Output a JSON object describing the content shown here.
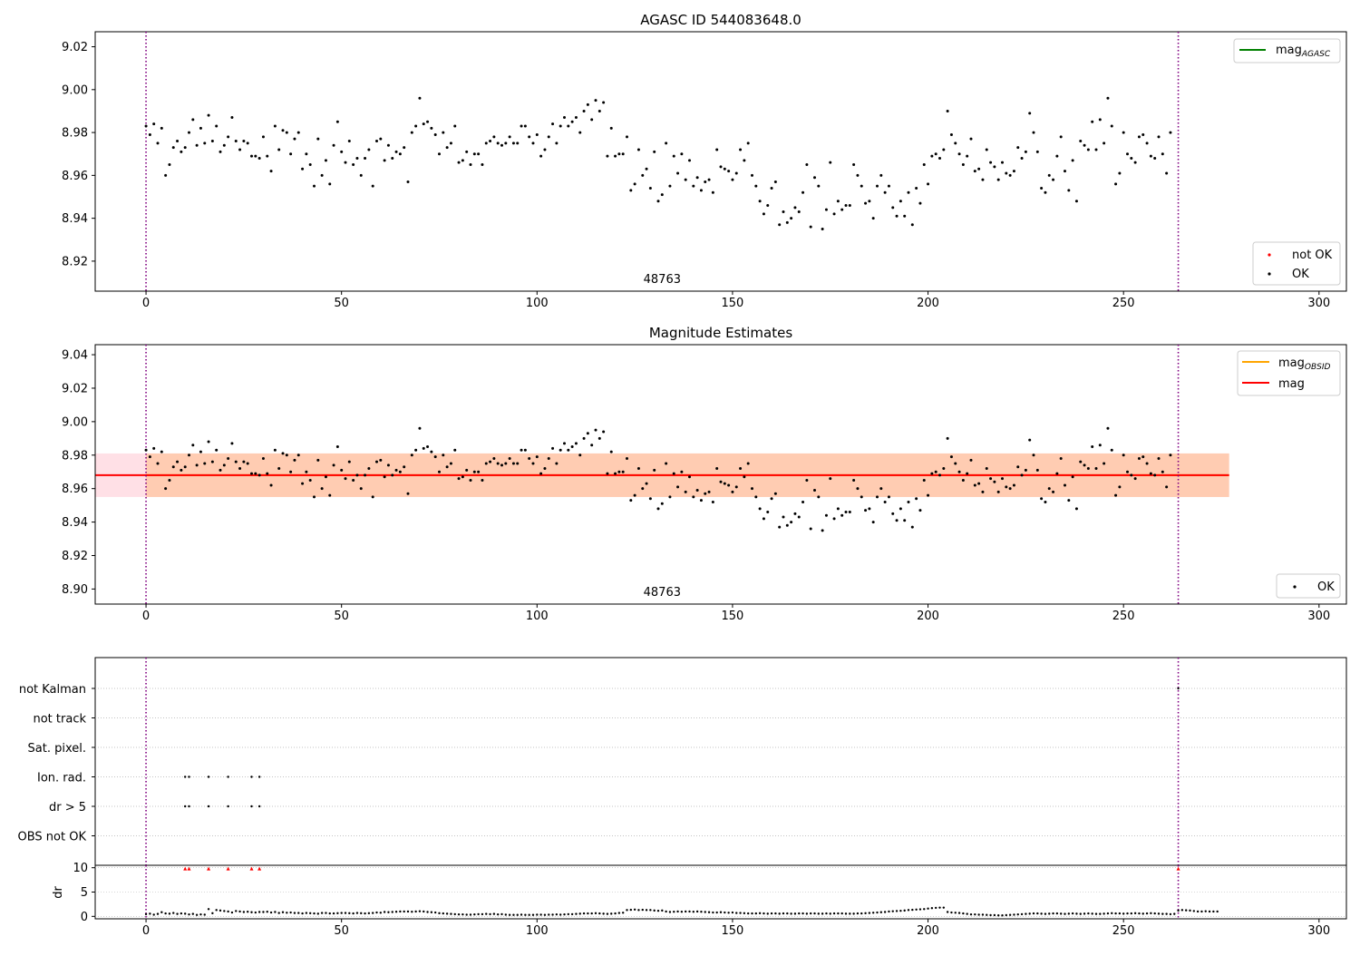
{
  "colors": {
    "ok": "#000000",
    "not_ok": "#ff0000",
    "mag_agasc": "#008000",
    "mag_obsid": "#ffa500",
    "mag": "#ff0000",
    "obsid_band": "#ffc8a8",
    "mag_band": "#ffe0e6",
    "vline": "#800080",
    "grid": "#b0b0b0"
  },
  "chart_data": [
    {
      "type": "scatter",
      "title": "AGASC ID 544083648.0",
      "xlim": [
        -13,
        307
      ],
      "ylim": [
        8.906,
        9.027
      ],
      "x_ticks": [
        0,
        50,
        100,
        150,
        200,
        250,
        300
      ],
      "x_tick_labels": [
        "0",
        "50",
        "100",
        "150",
        "200",
        "250",
        "300"
      ],
      "y_ticks": [
        8.92,
        8.94,
        8.96,
        8.98,
        9.0,
        9.02
      ],
      "y_tick_labels": [
        "8.92",
        "8.94",
        "8.96",
        "8.98",
        "9.00",
        "9.02"
      ],
      "obsid_boundaries": [
        0,
        264
      ],
      "obsid_label": "48763",
      "obsid_label_x": 132,
      "legend_upper": [
        {
          "name": "mag",
          "sub": "AGASC",
          "color": "#008000",
          "style": "line"
        }
      ],
      "legend_lower": [
        {
          "name": "not OK",
          "color": "#ff0000",
          "style": "point"
        },
        {
          "name": "OK",
          "color": "#000000",
          "style": "point"
        }
      ],
      "series": [
        {
          "name": "OK",
          "ref": "mags"
        }
      ]
    },
    {
      "type": "scatter",
      "title": "Magnitude Estimates",
      "xlim": [
        -13,
        307
      ],
      "ylim": [
        8.891,
        9.046
      ],
      "x_ticks": [
        0,
        50,
        100,
        150,
        200,
        250,
        300
      ],
      "x_tick_labels": [
        "0",
        "50",
        "100",
        "150",
        "200",
        "250",
        "300"
      ],
      "y_ticks": [
        8.9,
        8.92,
        8.94,
        8.96,
        8.98,
        9.0,
        9.02,
        9.04
      ],
      "y_tick_labels": [
        "8.90",
        "8.92",
        "8.94",
        "8.96",
        "8.98",
        "9.00",
        "9.02",
        "9.04"
      ],
      "obsid_boundaries": [
        0,
        264
      ],
      "obsid_label": "48763",
      "obsid_label_x": 132,
      "mag": 8.968,
      "mag_std": 0.013,
      "mag_line_x": [
        -13,
        277
      ],
      "legend_upper": [
        {
          "name": "mag",
          "sub": "OBSID",
          "color": "#ffa500",
          "style": "line"
        },
        {
          "name": "mag",
          "sub": "",
          "color": "#ff0000",
          "style": "line"
        }
      ],
      "legend_lower": [
        {
          "name": "OK",
          "color": "#000000",
          "style": "point"
        }
      ],
      "series": [
        {
          "name": "OK",
          "ref": "mags"
        }
      ]
    },
    {
      "type": "scatter",
      "title": "",
      "xlim": [
        -13,
        307
      ],
      "x_ticks": [
        0,
        50,
        100,
        150,
        200,
        250,
        300
      ],
      "x_tick_labels": [
        "0",
        "50",
        "100",
        "150",
        "200",
        "250",
        "300"
      ],
      "obsid_boundaries": [
        0,
        264
      ],
      "flag_rows": [
        "not Kalman",
        "not track",
        "Sat. pixel.",
        "Ion. rad.",
        "dr > 5",
        "OBS not OK"
      ],
      "flag_points": {
        "not Kalman": [
          264
        ],
        "not track": [],
        "Sat. pixel.": [],
        "Ion. rad.": [
          10,
          11,
          16,
          21,
          27,
          29
        ],
        "dr > 5": [
          10,
          11,
          16,
          21,
          27,
          29
        ],
        "OBS not OK": []
      },
      "dr_ylabel": "dr",
      "dr_ylim": [
        -0.5,
        10.5
      ],
      "dr_ticks": [
        0,
        5,
        10
      ],
      "dr_tick_labels": [
        "0",
        "5",
        "10"
      ],
      "dr_clipped_x": [
        10,
        11,
        16,
        21,
        27,
        29,
        264
      ]
    }
  ],
  "mags": [
    8.983,
    8.979,
    8.984,
    8.975,
    8.982,
    8.96,
    8.965,
    8.973,
    8.976,
    8.971,
    8.973,
    8.98,
    8.986,
    8.974,
    8.982,
    8.975,
    8.988,
    8.976,
    8.983,
    8.971,
    8.974,
    8.978,
    8.987,
    8.976,
    8.972,
    8.976,
    8.975,
    8.969,
    8.969,
    8.968,
    8.978,
    8.969,
    8.962,
    8.983,
    8.972,
    8.981,
    8.98,
    8.97,
    8.977,
    8.98,
    8.963,
    8.97,
    8.965,
    8.955,
    8.977,
    8.96,
    8.967,
    8.956,
    8.974,
    8.985,
    8.971,
    8.966,
    8.976,
    8.965,
    8.968,
    8.96,
    8.968,
    8.972,
    8.955,
    8.976,
    8.977,
    8.967,
    8.974,
    8.968,
    8.971,
    8.97,
    8.973,
    8.957,
    8.98,
    8.983,
    8.996,
    8.984,
    8.985,
    8.982,
    8.979,
    8.97,
    8.98,
    8.973,
    8.975,
    8.983,
    8.966,
    8.967,
    8.971,
    8.965,
    8.97,
    8.97,
    8.965,
    8.975,
    8.976,
    8.978,
    8.975,
    8.974,
    8.975,
    8.978,
    8.975,
    8.975,
    8.983,
    8.983,
    8.978,
    8.975,
    8.979,
    8.969,
    8.972,
    8.978,
    8.984,
    8.975,
    8.983,
    8.987,
    8.983,
    8.985,
    8.987,
    8.98,
    8.99,
    8.993,
    8.986,
    8.995,
    8.99,
    8.994,
    8.969,
    8.982,
    8.969,
    8.97,
    8.97,
    8.978,
    8.953,
    8.956,
    8.972,
    8.96,
    8.963,
    8.954,
    8.971,
    8.948,
    8.951,
    8.975,
    8.955,
    8.969,
    8.961,
    8.97,
    8.958,
    8.967,
    8.955,
    8.959,
    8.953,
    8.957,
    8.958,
    8.952,
    8.972,
    8.964,
    8.963,
    8.962,
    8.958,
    8.961,
    8.972,
    8.967,
    8.975,
    8.96,
    8.955,
    8.948,
    8.942,
    8.946,
    8.954,
    8.957,
    8.937,
    8.943,
    8.938,
    8.94,
    8.945,
    8.943,
    8.952,
    8.965,
    8.936,
    8.959,
    8.955,
    8.935,
    8.944,
    8.966,
    8.942,
    8.948,
    8.944,
    8.946,
    8.946,
    8.965,
    8.96,
    8.955,
    8.947,
    8.948,
    8.94,
    8.955,
    8.96,
    8.952,
    8.955,
    8.945,
    8.941,
    8.948,
    8.941,
    8.952,
    8.937,
    8.954,
    8.947,
    8.965,
    8.956,
    8.969,
    8.97,
    8.968,
    8.972,
    8.99,
    8.979,
    8.975,
    8.97,
    8.965,
    8.969,
    8.977,
    8.962,
    8.963,
    8.958,
    8.972,
    8.966,
    8.964,
    8.958,
    8.966,
    8.961,
    8.96,
    8.962,
    8.973,
    8.968,
    8.971,
    8.989,
    8.98,
    8.971,
    8.954,
    8.952,
    8.96,
    8.958,
    8.969,
    8.978,
    8.962,
    8.953,
    8.967,
    8.948,
    8.976,
    8.974,
    8.972,
    8.985,
    8.972,
    8.986,
    8.975,
    8.996,
    8.983,
    8.956,
    8.961,
    8.98,
    8.97,
    8.968,
    8.966,
    8.978,
    8.979,
    8.975,
    8.969,
    8.968,
    8.978,
    8.97,
    8.961,
    8.98
  ],
  "drs": [
    0.45,
    0.55,
    0.35,
    0.5,
    0.85,
    0.6,
    0.55,
    0.7,
    0.5,
    0.6,
    0.55,
    0.4,
    0.5,
    0.3,
    0.4,
    0.35,
    1.5,
    0.65,
    1.3,
    1.2,
    1.1,
    1.0,
    0.8,
    1.1,
    1.0,
    0.9,
    0.95,
    0.85,
    0.8,
    0.9,
    0.9,
    0.95,
    0.8,
    0.9,
    0.7,
    0.85,
    0.75,
    0.8,
    0.7,
    0.7,
    0.6,
    0.7,
    0.65,
    0.6,
    0.55,
    0.7,
    0.7,
    0.6,
    0.6,
    0.65,
    0.7,
    0.7,
    0.65,
    0.6,
    0.7,
    0.65,
    0.6,
    0.65,
    0.7,
    0.8,
    0.75,
    0.9,
    0.85,
    0.9,
    0.95,
    1.0,
    1.0,
    1.0,
    0.95,
    1.0,
    1.05,
    1.0,
    0.9,
    0.85,
    0.8,
    0.65,
    0.6,
    0.55,
    0.5,
    0.45,
    0.4,
    0.4,
    0.35,
    0.35,
    0.4,
    0.45,
    0.45,
    0.5,
    0.45,
    0.5,
    0.4,
    0.45,
    0.35,
    0.3,
    0.3,
    0.3,
    0.35,
    0.3,
    0.3,
    0.3,
    0.35,
    0.35,
    0.3,
    0.35,
    0.35,
    0.4,
    0.35,
    0.4,
    0.45,
    0.45,
    0.5,
    0.55,
    0.6,
    0.6,
    0.6,
    0.65,
    0.6,
    0.55,
    0.5,
    0.55,
    0.6,
    0.7,
    0.75,
    1.3,
    1.35,
    1.4,
    1.3,
    1.35,
    1.3,
    1.3,
    1.2,
    1.15,
    1.2,
    1.0,
    0.9,
    0.95,
    1.0,
    0.95,
    1.0,
    1.0,
    0.95,
    1.0,
    0.95,
    0.9,
    0.85,
    0.8,
    0.8,
    0.85,
    0.8,
    0.75,
    0.8,
    0.7,
    0.7,
    0.65,
    0.6,
    0.6,
    0.6,
    0.65,
    0.6,
    0.55,
    0.6,
    0.6,
    0.55,
    0.6,
    0.6,
    0.55,
    0.55,
    0.6,
    0.6,
    0.55,
    0.6,
    0.6,
    0.55,
    0.55,
    0.6,
    0.55,
    0.6,
    0.6,
    0.6,
    0.55,
    0.55,
    0.55,
    0.6,
    0.6,
    0.65,
    0.7,
    0.75,
    0.8,
    0.85,
    0.9,
    1.0,
    1.05,
    1.1,
    1.15,
    1.2,
    1.3,
    1.35,
    1.4,
    1.45,
    1.5,
    1.6,
    1.7,
    1.75,
    1.8,
    1.8,
    0.9,
    0.8,
    0.75,
    0.7,
    0.6,
    0.5,
    0.4,
    0.4,
    0.35,
    0.35,
    0.3,
    0.25,
    0.25,
    0.2,
    0.2,
    0.25,
    0.3,
    0.35,
    0.4,
    0.45,
    0.5,
    0.55,
    0.6,
    0.6,
    0.55,
    0.5,
    0.55,
    0.6,
    0.6,
    0.55,
    0.5,
    0.55,
    0.6,
    0.55,
    0.5,
    0.55,
    0.6,
    0.55,
    0.5,
    0.5,
    0.55,
    0.6,
    0.65,
    0.6,
    0.6,
    0.55,
    0.6,
    0.6,
    0.65,
    0.6,
    0.55,
    0.6,
    0.65,
    0.6,
    0.55,
    0.5,
    0.5,
    0.45,
    0.5,
    1.2,
    1.3,
    1.25,
    1.2,
    1.1,
    1.0,
    1.0,
    1.05,
    1.0,
    1.0,
    1.0
  ]
}
